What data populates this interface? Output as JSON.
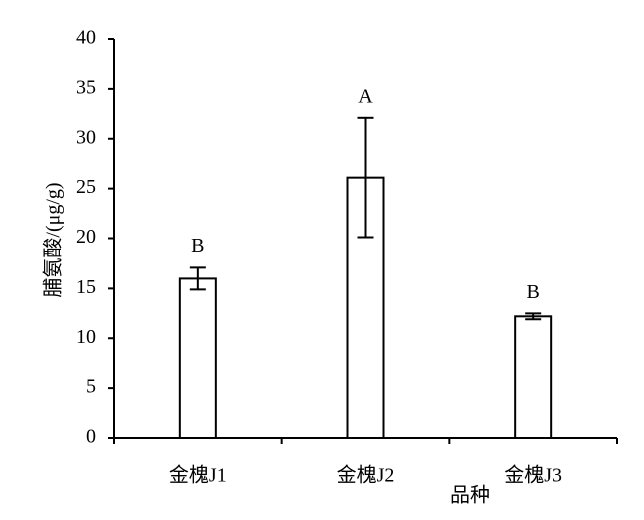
{
  "chart_data": {
    "type": "bar",
    "categories": [
      "金槐J1",
      "金槐J2",
      "金槐J3"
    ],
    "values": [
      16,
      26.1,
      12.2
    ],
    "errors": [
      1.1,
      6,
      0.3
    ],
    "significance": [
      "B",
      "A",
      "B"
    ],
    "x_label": "品种",
    "y_label": "脯氨酸/(μg/g)",
    "ylim": [
      0,
      40
    ],
    "yticks": [
      0,
      5,
      10,
      15,
      20,
      25,
      30,
      35,
      40
    ],
    "color": "#ffffff",
    "edge_color": "#000000",
    "grid": false
  }
}
